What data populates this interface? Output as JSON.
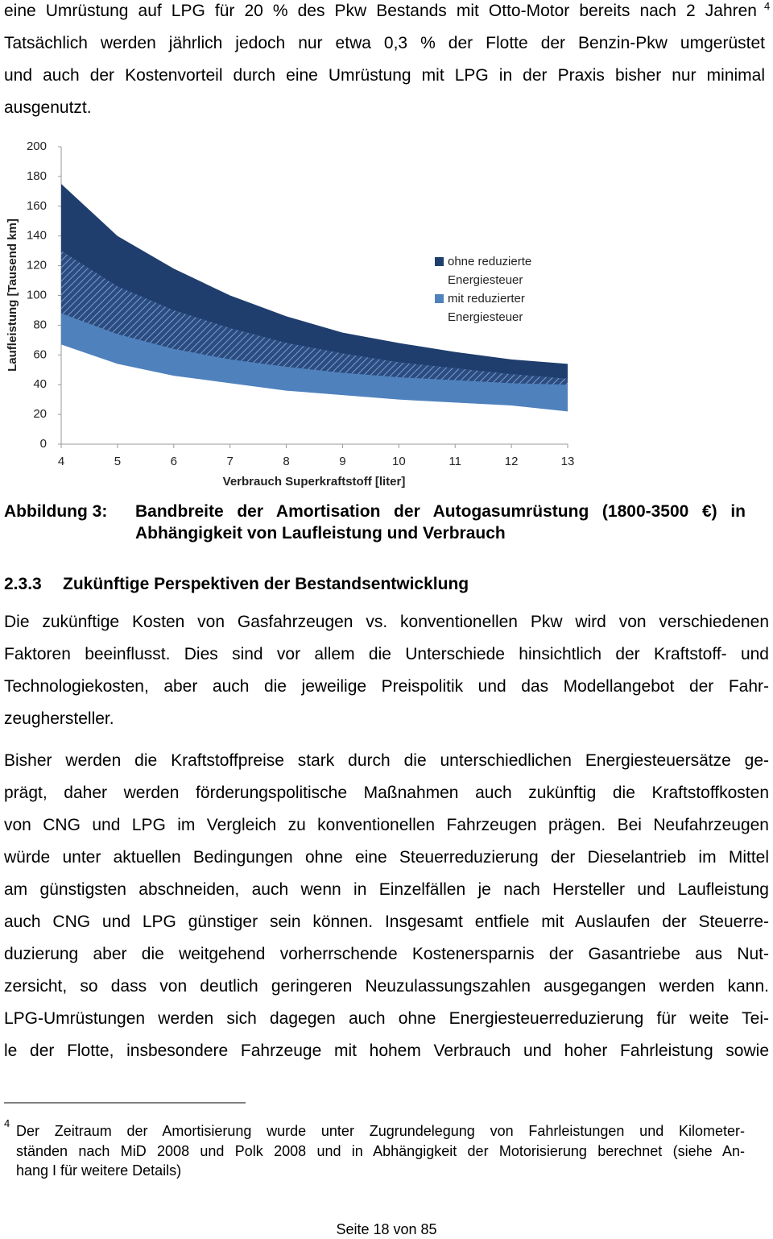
{
  "paragraph_1": {
    "lines": [
      "eine Umrüstung auf LPG für 20 % des Pkw Bestands mit Otto-Motor bereits nach 2 Jahren",
      "Tatsächlich werden jährlich jedoch nur etwa 0,3 % der Flotte der Benzin-Pkw umgerüstet",
      "und auch der Kostenvorteil durch eine Umrüstung mit LPG in der Praxis bisher nur minimal",
      "ausgenutzt."
    ],
    "footnote_ref": "4"
  },
  "chart_data": {
    "type": "area_range",
    "xlabel": "Verbrauch Superkraftstoff [liter]",
    "ylabel": "Laufleistung [Tausend km]",
    "x": [
      4,
      5,
      6,
      7,
      8,
      9,
      10,
      11,
      12,
      13
    ],
    "series": [
      {
        "name": "ohne reduzierte Energiesteuer",
        "color": "#1f3e6e",
        "high": [
          175,
          140,
          118,
          100,
          86,
          75,
          68,
          62,
          57,
          54
        ],
        "low": [
          88,
          74,
          64,
          57,
          52,
          48,
          45,
          43,
          41,
          40
        ]
      },
      {
        "name": "mit reduzierter Energiesteuer",
        "color": "#4f81bd",
        "high": [
          130,
          106,
          90,
          78,
          68,
          61,
          55,
          51,
          47,
          44
        ],
        "low": [
          67,
          54,
          46,
          41,
          36,
          33,
          30,
          28,
          26,
          22
        ]
      }
    ],
    "overlap": "hatched",
    "xlim": [
      4,
      13
    ],
    "ylim": [
      0,
      200
    ],
    "xticks": [
      4,
      5,
      6,
      7,
      8,
      9,
      10,
      11,
      12,
      13
    ],
    "yticks": [
      0,
      20,
      40,
      60,
      80,
      100,
      120,
      140,
      160,
      180,
      200
    ],
    "legend": "right"
  },
  "caption": {
    "label": "Abbildung 3:",
    "lines": [
      "Bandbreite der Amortisation der Autogasumrüstung (1800-3500 €) in",
      "Abhängigkeit von Laufleistung und Verbrauch"
    ]
  },
  "section": {
    "number": "2.3.3",
    "title": "Zukünftige Perspektiven der Bestandsentwicklung"
  },
  "paragraph_2": {
    "lines": [
      "Die zukünftige Kosten von Gasfahrzeugen vs. konventionellen Pkw wird von verschiedenen",
      "Faktoren beeinflusst. Dies sind vor allem die Unterschiede hinsichtlich der Kraftstoff- und",
      "Technologiekosten, aber auch die jeweilige Preispolitik und das Modellangebot der Fahr-",
      "zeughersteller."
    ]
  },
  "paragraph_3": {
    "lines": [
      "Bisher werden die Kraftstoffpreise stark durch die unterschiedlichen Energiesteuersätze ge-",
      "prägt, daher werden förderungspolitische Maßnahmen auch zukünftig die Kraftstoffkosten",
      "von CNG und LPG im Vergleich zu konventionellen Fahrzeugen prägen. Bei Neufahrzeugen",
      "würde unter aktuellen Bedingungen ohne eine Steuerreduzierung der Dieselantrieb im Mittel",
      "am günstigsten abschneiden, auch wenn in Einzelfällen je nach Hersteller und Laufleistung",
      "auch CNG und LPG günstiger sein können. Insgesamt entfiele mit Auslaufen der Steuerre-",
      "duzierung aber die weitgehend vorherrschende Kostenersparnis der Gasantriebe aus Nut-",
      "zersicht, so dass von deutlich geringeren Neuzulassungszahlen ausgegangen werden kann.",
      "LPG-Umrüstungen werden sich dagegen auch ohne Energiesteuerreduzierung für weite Tei-",
      "le der Flotte, insbesondere Fahrzeuge mit hohem Verbrauch und hoher Fahrleistung sowie"
    ]
  },
  "footnote": {
    "marker": "4",
    "lines": [
      "Der Zeitraum der Amortisierung wurde unter Zugrundelegung von Fahrleistungen und Kilometer-",
      "ständen nach MiD 2008 und Polk 2008 und in Abhängigkeit der Motorisierung berechnet (siehe An-",
      "hang I für weitere Details)"
    ]
  },
  "footer": "Seite 18 von 85"
}
